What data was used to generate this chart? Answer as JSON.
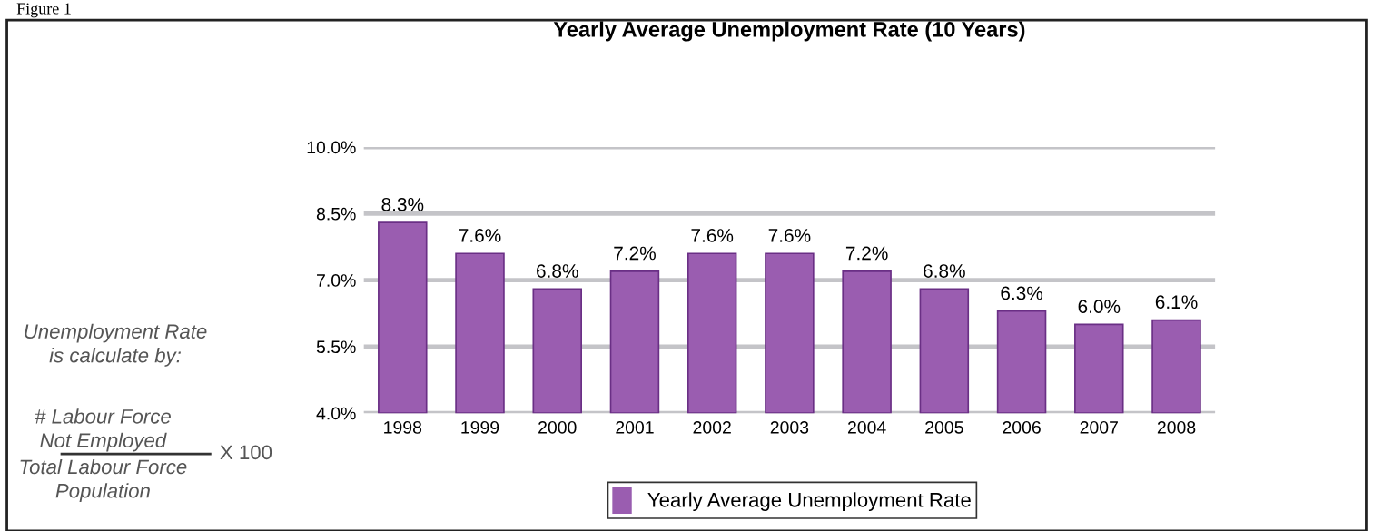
{
  "chart_data": {
    "type": "bar",
    "title": "Yearly Average Unemployment Rate (10 Years)",
    "categories": [
      "1998",
      "1999",
      "2000",
      "2001",
      "2002",
      "2003",
      "2004",
      "2005",
      "2006",
      "2007",
      "2008"
    ],
    "series": [
      {
        "name": "Yearly Average Unemployment Rate",
        "color": "#9a5db0",
        "values": [
          8.3,
          7.6,
          6.8,
          7.2,
          7.6,
          7.6,
          7.2,
          6.8,
          6.3,
          6.0,
          6.1
        ],
        "value_labels": [
          "8.3%",
          "7.6%",
          "6.8%",
          "7.2%",
          "7.6%",
          "7.6%",
          "7.2%",
          "6.8%",
          "6.3%",
          "6.0%",
          "6.1%"
        ]
      }
    ],
    "ylim": [
      4,
      10
    ],
    "yticks": [
      {
        "value": 4,
        "label": "4.0%"
      },
      {
        "value": 5.5,
        "label": "5.5%"
      },
      {
        "value": 7,
        "label": "7.0%"
      },
      {
        "value": 8.5,
        "label": "8.5%"
      },
      {
        "value": 10,
        "label": "10.0%"
      }
    ],
    "grid": "y",
    "legend": "bottom",
    "annotations": [
      "Figure 1",
      "Unemployment Rate\nis calculate by:",
      "# Labour Force\nNot Employed",
      "Total Labour Force\nPopulation",
      "X 100"
    ]
  }
}
